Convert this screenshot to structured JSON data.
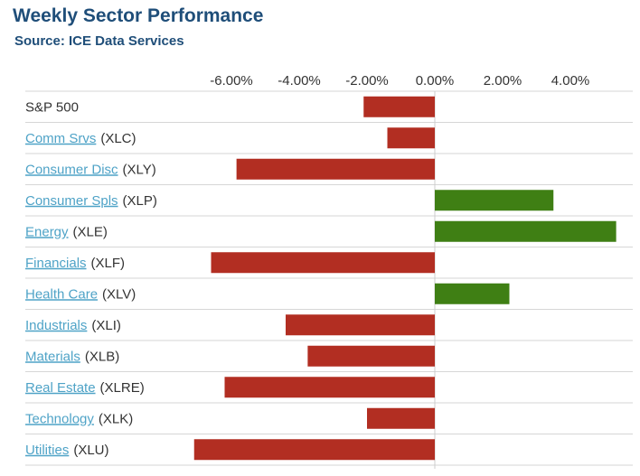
{
  "chart_data": {
    "type": "bar",
    "orientation": "horizontal",
    "title": "Weekly Sector Performance",
    "subtitle": "Source: ICE Data Services",
    "xlim": [
      -7.25,
      5.5
    ],
    "tick_values": [
      -6,
      -4,
      -2,
      0,
      2,
      4
    ],
    "tick_labels": [
      "-6.00%",
      "-4.00%",
      "-2.00%",
      "0.00%",
      "2.00%",
      "4.00%"
    ],
    "grid": false,
    "legend": "none",
    "colors": {
      "positive": "#3f7f14",
      "negative": "#b22e22",
      "link": "#4fa3c7",
      "title": "#1f4e79"
    },
    "categories": [
      {
        "name": "S&P 500",
        "ticker": "",
        "link": false,
        "value": -2.1
      },
      {
        "name": "Comm Srvs",
        "ticker": "(XLC)",
        "link": true,
        "value": -1.4
      },
      {
        "name": "Consumer Disc",
        "ticker": "(XLY)",
        "link": true,
        "value": -5.85
      },
      {
        "name": "Consumer Spls",
        "ticker": "(XLP)",
        "link": true,
        "value": 3.5
      },
      {
        "name": "Energy",
        "ticker": "(XLE)",
        "link": true,
        "value": 5.35
      },
      {
        "name": "Financials",
        "ticker": "(XLF)",
        "link": true,
        "value": -6.6
      },
      {
        "name": "Health Care",
        "ticker": "(XLV)",
        "link": true,
        "value": 2.2
      },
      {
        "name": "Industrials",
        "ticker": "(XLI)",
        "link": true,
        "value": -4.4
      },
      {
        "name": "Materials",
        "ticker": "(XLB)",
        "link": true,
        "value": -3.75
      },
      {
        "name": "Real Estate",
        "ticker": "(XLRE)",
        "link": true,
        "value": -6.2
      },
      {
        "name": "Technology",
        "ticker": "(XLK)",
        "link": true,
        "value": -2.0
      },
      {
        "name": "Utilities",
        "ticker": "(XLU)",
        "link": true,
        "value": -7.1
      }
    ]
  }
}
